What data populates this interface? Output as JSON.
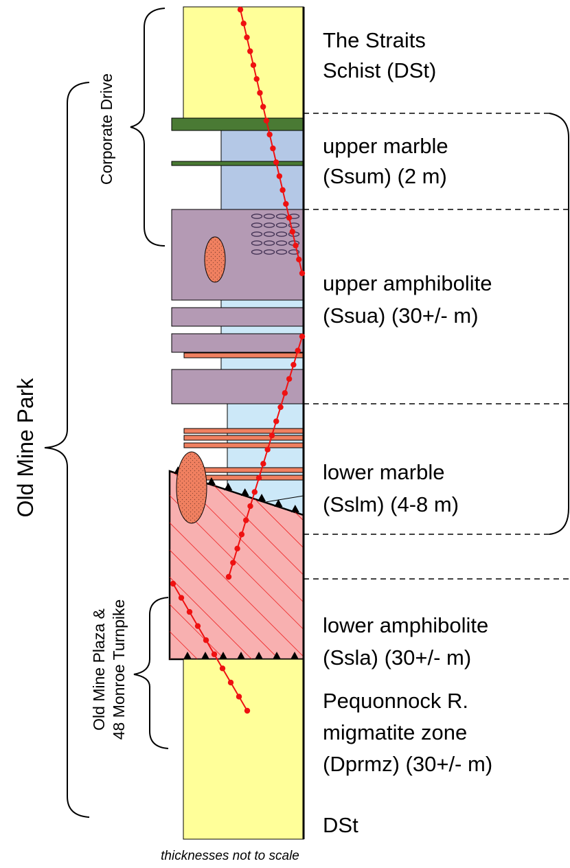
{
  "colors": {
    "straits_schist": "#ffff99",
    "marble": "#b4c8e6",
    "lower_marble": "#cce8f8",
    "amphibolite": "#b49ab4",
    "lower_amphibolite": "#c8b4e6",
    "green_band": "#4a7a34",
    "pegmatite": "#f08060",
    "migmatite": "#f8b0b0",
    "traverse": "#ee1111"
  },
  "units": [
    {
      "line1": "The Straits",
      "line2": "Schist (DSt)"
    },
    {
      "line1": "upper marble",
      "line2": "(Ssum) (2 m)"
    },
    {
      "line1": "upper amphibolite",
      "line2": "(Ssua) (30+/- m)"
    },
    {
      "line1": "lower marble",
      "line2": "(Sslm) (4-8 m)"
    },
    {
      "line1": "lower amphibolite",
      "line2": "(Ssla) (30+/- m)"
    },
    {
      "line1": "Pequonnock R.",
      "line2": "migmatite zone",
      "line3": "(Dprmz) (30+/- m)"
    },
    {
      "line1": "DSt"
    }
  ],
  "localities": {
    "corporate_drive": "Corporate Drive",
    "old_mine_park": "Old Mine Park",
    "old_mine_plaza_line1": "Old Mine Plaza &",
    "old_mine_plaza_line2": "48 Monroe Turnpike"
  },
  "note": "thicknesses not to scale"
}
